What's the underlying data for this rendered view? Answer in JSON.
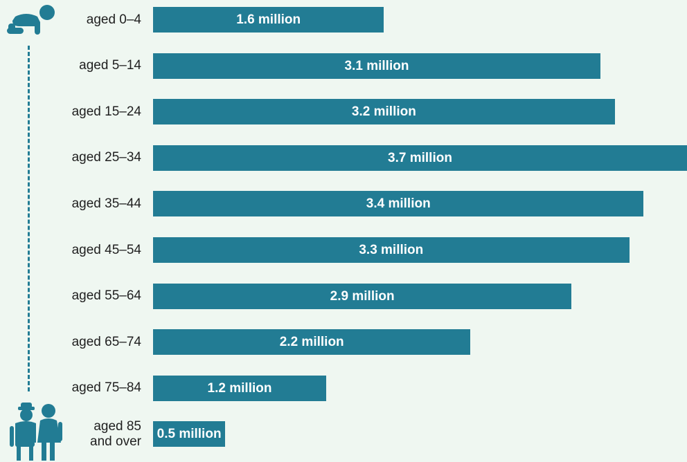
{
  "colors": {
    "bar": "#227c94",
    "background": "#eff7f1",
    "label_text": "#1f1f1f",
    "bar_text": "#ffffff"
  },
  "icons": {
    "top": "crawling-baby-icon",
    "bottom": "elderly-couple-icon"
  },
  "chart_data": {
    "type": "bar",
    "orientation": "horizontal",
    "categories": [
      "aged 0–4",
      "aged 5–14",
      "aged 15–24",
      "aged 25–34",
      "aged 35–44",
      "aged 45–54",
      "aged 55–64",
      "aged 65–74",
      "aged 75–84",
      "aged 85\nand over"
    ],
    "values": [
      1.6,
      3.1,
      3.2,
      3.7,
      3.4,
      3.3,
      2.9,
      2.2,
      1.2,
      0.5
    ],
    "data_labels": [
      "1.6 million",
      "3.1 million",
      "3.2 million",
      "3.7 million",
      "3.4 million",
      "3.3 million",
      "2.9 million",
      "2.2 million",
      "1.2 million",
      "0.5 million"
    ],
    "xlim": [
      0,
      3.7
    ],
    "grid": false
  }
}
